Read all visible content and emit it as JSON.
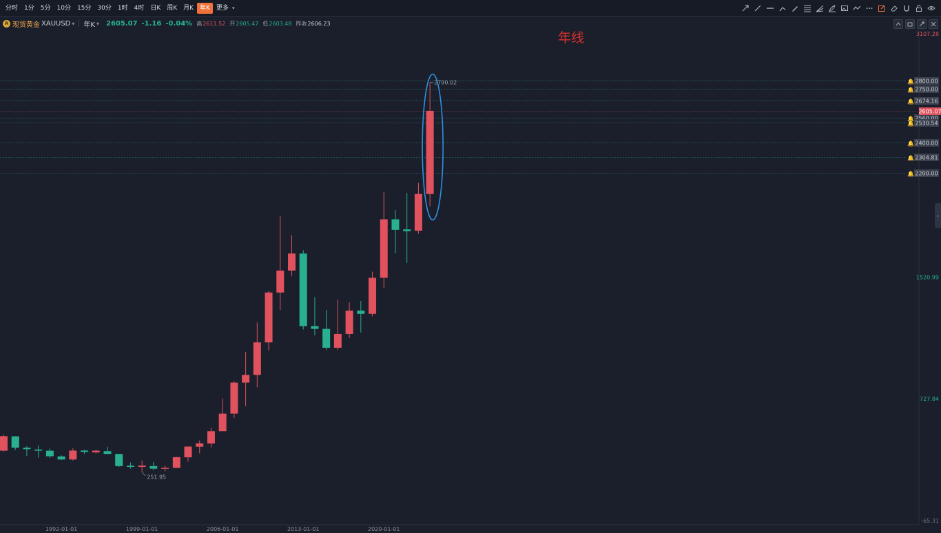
{
  "toolbar": {
    "periods": [
      "分时",
      "1分",
      "5分",
      "10分",
      "15分",
      "30分",
      "1时",
      "4时",
      "日K",
      "周K",
      "月K",
      "年K",
      "更多"
    ],
    "active_period": "年K",
    "more_caret": "▾",
    "tools": [
      "arrow-line-icon",
      "ray-icon",
      "horizontal-line-icon",
      "trend-angle-icon",
      "pen-icon",
      "fib-grid-icon",
      "fan-icon",
      "brush-icon",
      "image-icon",
      "wave-icon",
      "more-dots-icon",
      "edit-box-icon",
      "eraser-icon",
      "magnet-icon",
      "lock-icon",
      "eye-icon"
    ]
  },
  "symbol": {
    "icon_text": "A",
    "name": "现货黄金",
    "code": "XAUUSD",
    "period": "年K",
    "last": "2605.07",
    "change": "-1.16",
    "change_pct": "-0.04%",
    "high_label": "高",
    "high": "2611.52",
    "open_label": "开",
    "open": "2605.47",
    "low_label": "低",
    "low": "2603.48",
    "prev_label": "昨收",
    "prev": "2606.23"
  },
  "annotation": "年线",
  "colors": {
    "up": "#e0525e",
    "down": "#28b08f",
    "background": "#1a1f2b",
    "ellipse": "#2f8fe0",
    "annotation": "#e0302a"
  },
  "chart_data": {
    "type": "candlestick",
    "x_ticks": [
      "1992-01-01",
      "1999-01-01",
      "2006-01-01",
      "2013-01-01",
      "2020-01-01"
    ],
    "y_axis_labels": [
      3107.28,
      1520.99,
      727.84,
      -65.31
    ],
    "ylim": [
      -65.31,
      3107.28
    ],
    "last_price_label": "2605.07",
    "max_label": "2790.02",
    "min_label": "251.95",
    "price_lines": [
      {
        "value": 2800.0,
        "label": "2800.00"
      },
      {
        "value": 2750.0,
        "label": "2750.00"
      },
      {
        "value": 2674.16,
        "label": "2674.16"
      },
      {
        "value": 2560.0,
        "label": "2560.00"
      },
      {
        "value": 2530.54,
        "label": "2530.54"
      },
      {
        "value": 2400.0,
        "label": "2400.00"
      },
      {
        "value": 2304.81,
        "label": "2304.81"
      },
      {
        "value": 2200.0,
        "label": "2200.00"
      }
    ],
    "candles": [
      {
        "year": 1987,
        "o": 390,
        "h": 495,
        "l": 385,
        "c": 485
      },
      {
        "year": 1988,
        "o": 484,
        "h": 485,
        "l": 395,
        "c": 410
      },
      {
        "year": 1989,
        "o": 410,
        "h": 420,
        "l": 356,
        "c": 400
      },
      {
        "year": 1990,
        "o": 398,
        "h": 425,
        "l": 345,
        "c": 390
      },
      {
        "year": 1991,
        "o": 390,
        "h": 404,
        "l": 343,
        "c": 354
      },
      {
        "year": 1992,
        "o": 353,
        "h": 360,
        "l": 330,
        "c": 333
      },
      {
        "year": 1993,
        "o": 333,
        "h": 407,
        "l": 326,
        "c": 391
      },
      {
        "year": 1994,
        "o": 391,
        "h": 397,
        "l": 370,
        "c": 383
      },
      {
        "year": 1995,
        "o": 383,
        "h": 397,
        "l": 372,
        "c": 387
      },
      {
        "year": 1996,
        "o": 387,
        "h": 416,
        "l": 367,
        "c": 369
      },
      {
        "year": 1997,
        "o": 369,
        "h": 370,
        "l": 283,
        "c": 290
      },
      {
        "year": 1998,
        "o": 289,
        "h": 314,
        "l": 273,
        "c": 288
      },
      {
        "year": 1999,
        "o": 288,
        "h": 326,
        "l": 251.95,
        "c": 290
      },
      {
        "year": 2000,
        "o": 290,
        "h": 317,
        "l": 263,
        "c": 273
      },
      {
        "year": 2001,
        "o": 272,
        "h": 293,
        "l": 255,
        "c": 279
      },
      {
        "year": 2002,
        "o": 278,
        "h": 350,
        "l": 277,
        "c": 348
      },
      {
        "year": 2003,
        "o": 347,
        "h": 418,
        "l": 320,
        "c": 417
      },
      {
        "year": 2004,
        "o": 416,
        "h": 457,
        "l": 373,
        "c": 438
      },
      {
        "year": 2005,
        "o": 437,
        "h": 540,
        "l": 411,
        "c": 517
      },
      {
        "year": 2006,
        "o": 517,
        "h": 730,
        "l": 520,
        "c": 632
      },
      {
        "year": 2007,
        "o": 632,
        "h": 843,
        "l": 603,
        "c": 834
      },
      {
        "year": 2008,
        "o": 834,
        "h": 1033,
        "l": 681,
        "c": 884
      },
      {
        "year": 2009,
        "o": 884,
        "h": 1226,
        "l": 803,
        "c": 1096
      },
      {
        "year": 2010,
        "o": 1096,
        "h": 1431,
        "l": 1044,
        "c": 1421
      },
      {
        "year": 2011,
        "o": 1421,
        "h": 1921,
        "l": 1308,
        "c": 1564
      },
      {
        "year": 2012,
        "o": 1564,
        "h": 1796,
        "l": 1527,
        "c": 1675
      },
      {
        "year": 2013,
        "o": 1675,
        "h": 1697,
        "l": 1180,
        "c": 1202
      },
      {
        "year": 2014,
        "o": 1202,
        "h": 1392,
        "l": 1142,
        "c": 1184
      },
      {
        "year": 2015,
        "o": 1184,
        "h": 1308,
        "l": 1046,
        "c": 1061
      },
      {
        "year": 2016,
        "o": 1061,
        "h": 1375,
        "l": 1046,
        "c": 1151
      },
      {
        "year": 2017,
        "o": 1151,
        "h": 1357,
        "l": 1124,
        "c": 1303
      },
      {
        "year": 2018,
        "o": 1303,
        "h": 1366,
        "l": 1160,
        "c": 1282
      },
      {
        "year": 2019,
        "o": 1282,
        "h": 1557,
        "l": 1266,
        "c": 1517
      },
      {
        "year": 2020,
        "o": 1517,
        "h": 2075,
        "l": 1451,
        "c": 1898
      },
      {
        "year": 2021,
        "o": 1898,
        "h": 1959,
        "l": 1676,
        "c": 1829
      },
      {
        "year": 2022,
        "o": 1829,
        "h": 2070,
        "l": 1614,
        "c": 1824
      },
      {
        "year": 2023,
        "o": 1824,
        "h": 2135,
        "l": 1804,
        "c": 2063
      },
      {
        "year": 2024,
        "o": 2063,
        "h": 2790.02,
        "l": 1984,
        "c": 2605.07
      }
    ]
  }
}
